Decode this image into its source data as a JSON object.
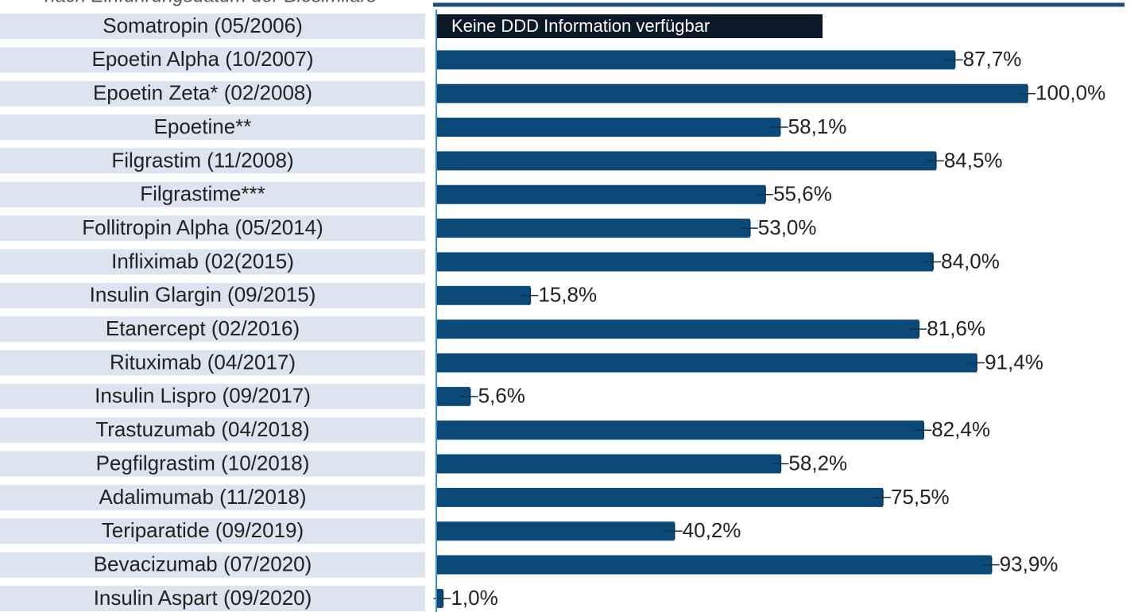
{
  "chart_data": {
    "type": "bar",
    "orientation": "horizontal",
    "subtitle": "nach Einführungsdatum der Biosimilars",
    "annotation": "Keine DDD Information verfügbar",
    "categories": [
      "Somatropin (05/2006)",
      "Epoetin Alpha (10/2007)",
      "Epoetin Zeta* (02/2008)",
      "Epoetine**",
      "Filgrastim (11/2008)",
      "Filgrastime***",
      "Follitropin Alpha (05/2014)",
      "Infliximab (02(2015)",
      "Insulin Glargin (09/2015)",
      "Etanercept (02/2016)",
      "Rituximab (04/2017)",
      "Insulin Lispro (09/2017)",
      "Trastuzumab (04/2018)",
      "Pegfilgrastim (10/2018)",
      "Adalimumab (11/2018)",
      "Teriparatide (09/2019)",
      "Bevacizumab (07/2020)",
      "Insulin Aspart (09/2020)"
    ],
    "values": [
      null,
      87.7,
      100.0,
      58.1,
      84.5,
      55.6,
      53.0,
      84.0,
      15.8,
      81.6,
      91.4,
      5.6,
      82.4,
      58.2,
      75.5,
      40.2,
      93.9,
      1.0
    ],
    "value_labels": [
      null,
      "87,7%",
      "100,0%",
      "58,1%",
      "84,5%",
      "55,6%",
      "53,0%",
      "84,0%",
      "15,8%",
      "81,6%",
      "91,4%",
      "5,6%",
      "82,4%",
      "58,2%",
      "75,5%",
      "40,2%",
      "93,9%",
      "1,0%"
    ],
    "color": "#0b4a78",
    "xlim": [
      0,
      100
    ]
  }
}
